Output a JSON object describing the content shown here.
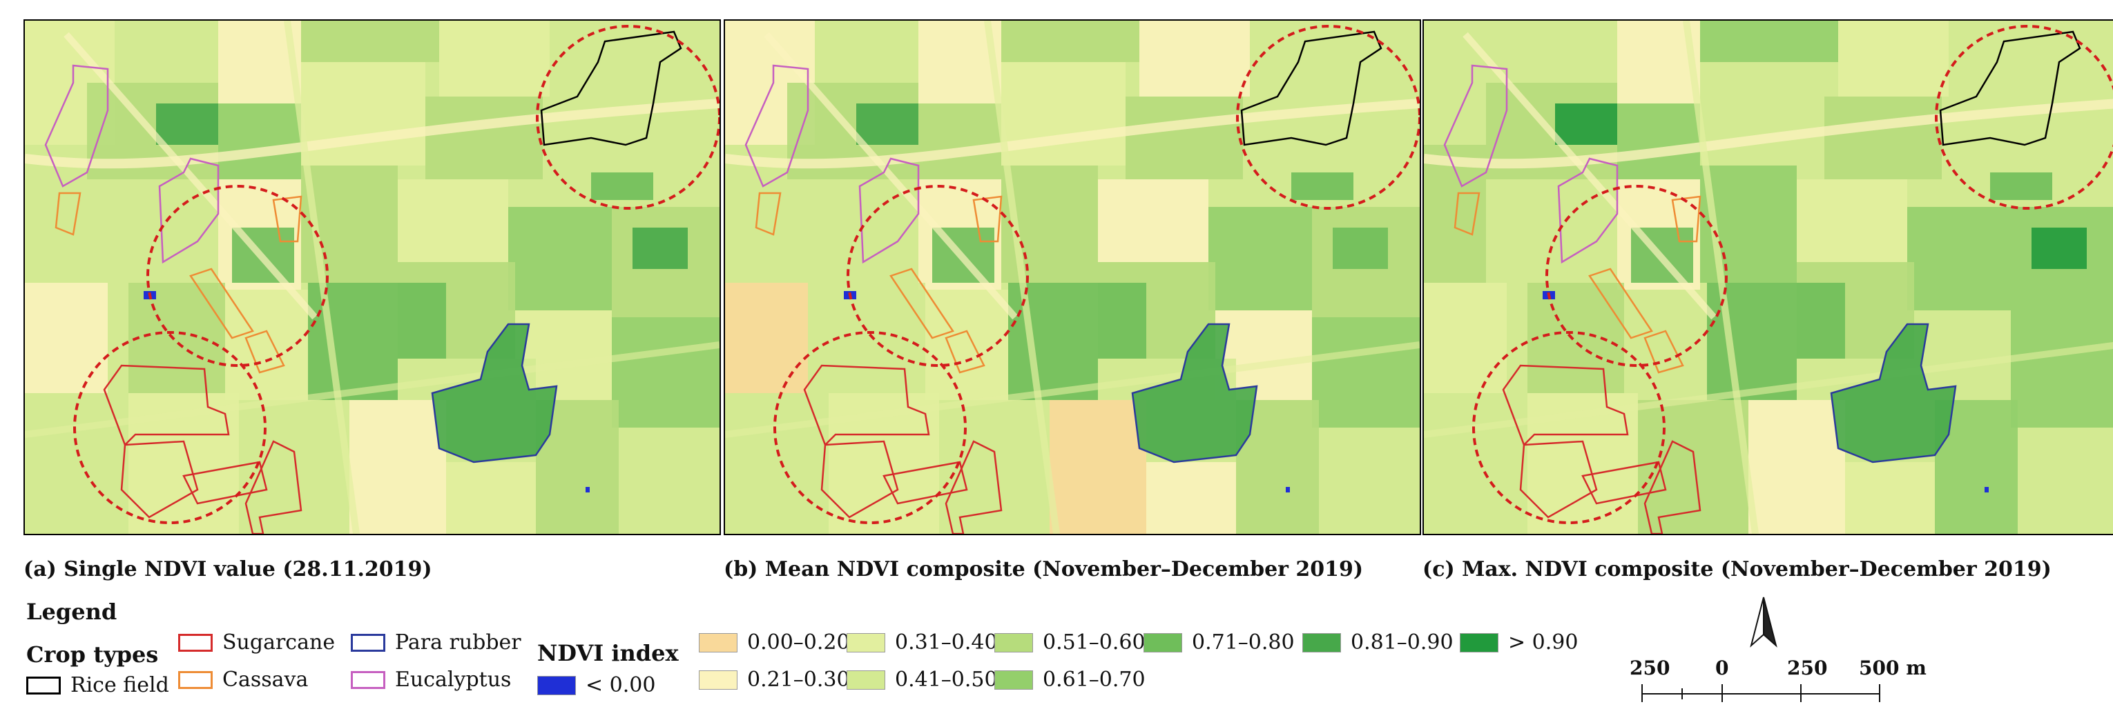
{
  "panels": [
    {
      "caption": "(a) Single NDVI value (28.11.2019)",
      "variant": "a"
    },
    {
      "caption": "(b) Mean NDVI composite (November–December 2019)",
      "variant": "b"
    },
    {
      "caption": "(c) Max. NDVI composite (November–December 2019)",
      "variant": "c"
    }
  ],
  "legend": {
    "title": "Legend",
    "crop_types_title": "Crop types",
    "crop_types": [
      {
        "label": "Rice field",
        "color": "#000000"
      },
      {
        "label": "Sugarcane",
        "color": "#d52b2b"
      },
      {
        "label": "Cassava",
        "color": "#ee8c35"
      },
      {
        "label": "Para rubber",
        "color": "#2a3a9c"
      },
      {
        "label": "Eucalyptus",
        "color": "#c65fc0"
      }
    ],
    "ndvi_title": "NDVI index",
    "ndvi_classes": [
      {
        "label": "< 0.00",
        "color": "#1f2fd6"
      },
      {
        "label": "0.00–0.20",
        "color": "#f9d99a"
      },
      {
        "label": "0.21–0.30",
        "color": "#fbf3bd"
      },
      {
        "label": "0.31–0.40",
        "color": "#e2ef9f"
      },
      {
        "label": "0.41–0.50",
        "color": "#d3ea92"
      },
      {
        "label": "0.51–0.60",
        "color": "#b6dc7c"
      },
      {
        "label": "0.61–0.70",
        "color": "#94cf6b"
      },
      {
        "label": "0.71–0.80",
        "color": "#6fbe5a"
      },
      {
        "label": "0.81–0.90",
        "color": "#47a84a"
      },
      {
        "label": "> 0.90",
        "color": "#219a3c"
      }
    ]
  },
  "scale_bar": {
    "labels": [
      "250",
      "0",
      "250",
      "500 m"
    ]
  },
  "annotation_color": "#d41c1c"
}
